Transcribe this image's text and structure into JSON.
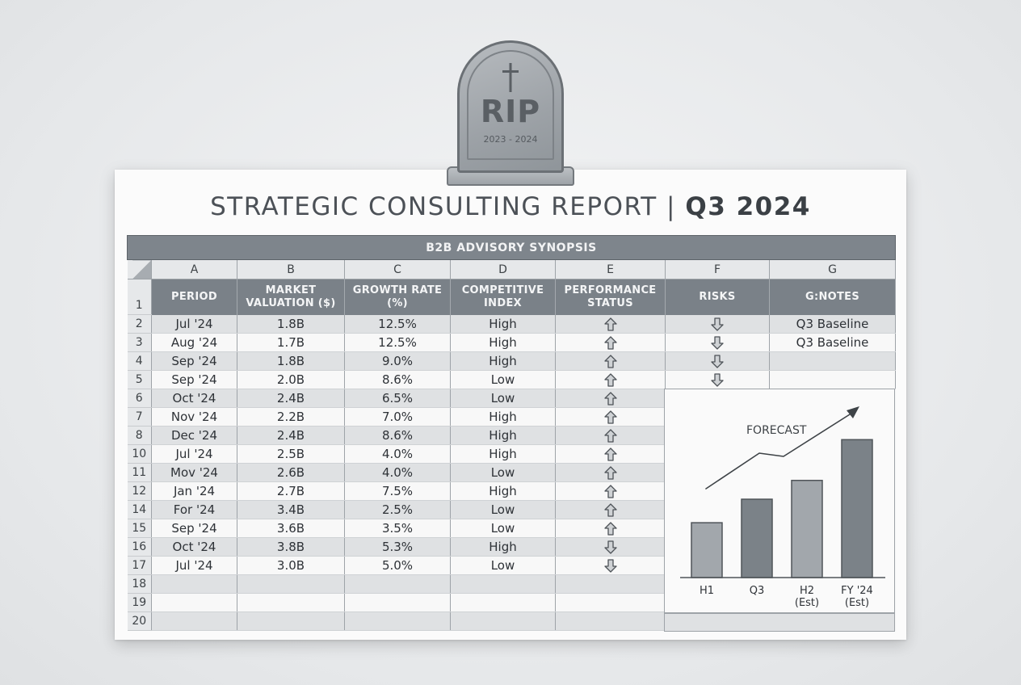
{
  "report": {
    "title_main": "STRATEGIC CONSULTING REPORT | ",
    "title_bold": "Q3 2024"
  },
  "tombstone": {
    "label": "RIP",
    "dates": "2023 - 2024",
    "icon": "cross-icon"
  },
  "table": {
    "banner": "B2B ADVISORY SYNOPSIS",
    "column_letters": [
      "A",
      "B",
      "C",
      "D",
      "E",
      "F",
      "G"
    ],
    "headers": [
      "PERIOD",
      "MARKET VALUATION ($)",
      "GROWTH RATE (%)",
      "COMPETITIVE INDEX",
      "PERFORMANCE STATUS",
      "RISKS",
      "G:NOTES"
    ],
    "header_row_number": "1",
    "rows": [
      {
        "n": "2",
        "period": "Jul '24",
        "valuation": "1.8B",
        "growth": "12.5%",
        "index": "High",
        "status": "up",
        "risk": "down",
        "note": "Q3 Baseline"
      },
      {
        "n": "3",
        "period": "Aug '24",
        "valuation": "1.7B",
        "growth": "12.5%",
        "index": "High",
        "status": "up",
        "risk": "down",
        "note": "Q3 Baseline"
      },
      {
        "n": "4",
        "period": "Sep '24",
        "valuation": "1.8B",
        "growth": "9.0%",
        "index": "High",
        "status": "up",
        "risk": "down",
        "note": ""
      },
      {
        "n": "5",
        "period": "Sep '24",
        "valuation": "2.0B",
        "growth": "8.6%",
        "index": "Low",
        "status": "up",
        "risk": "down",
        "note": ""
      },
      {
        "n": "6",
        "period": "Oct '24",
        "valuation": "2.4B",
        "growth": "6.5%",
        "index": "Low",
        "status": "up"
      },
      {
        "n": "7",
        "period": "Nov '24",
        "valuation": "2.2B",
        "growth": "7.0%",
        "index": "High",
        "status": "up"
      },
      {
        "n": "8",
        "period": "Dec '24",
        "valuation": "2.4B",
        "growth": "8.6%",
        "index": "High",
        "status": "up"
      },
      {
        "n": "10",
        "period": "Jul '24",
        "valuation": "2.5B",
        "growth": "4.0%",
        "index": "High",
        "status": "up"
      },
      {
        "n": "11",
        "period": "Mov '24",
        "valuation": "2.6B",
        "growth": "4.0%",
        "index": "Low",
        "status": "up"
      },
      {
        "n": "12",
        "period": "Jan '24",
        "valuation": "2.7B",
        "growth": "7.5%",
        "index": "High",
        "status": "up"
      },
      {
        "n": "14",
        "period": "For '24",
        "valuation": "3.4B",
        "growth": "2.5%",
        "index": "Low",
        "status": "up"
      },
      {
        "n": "15",
        "period": "Sep '24",
        "valuation": "3.6B",
        "growth": "3.5%",
        "index": "Low",
        "status": "up"
      },
      {
        "n": "16",
        "period": "Oct '24",
        "valuation": "3.8B",
        "growth": "5.3%",
        "index": "High",
        "status": "down"
      },
      {
        "n": "17",
        "period": "Jul '24",
        "valuation": "3.0B",
        "growth": "5.0%",
        "index": "Low",
        "status": "down"
      },
      {
        "n": "18",
        "period": "",
        "valuation": "",
        "growth": "",
        "index": "",
        "status": ""
      },
      {
        "n": "19",
        "period": "",
        "valuation": "",
        "growth": "",
        "index": "",
        "status": ""
      },
      {
        "n": "20",
        "period": "",
        "valuation": "",
        "growth": "",
        "index": "",
        "status": ""
      }
    ]
  },
  "chart_data": {
    "type": "bar",
    "annotation": "FORECAST",
    "categories": [
      "H1",
      "Q3",
      "H2\n(Est)",
      "FY '24\n(Est)"
    ],
    "values": [
      35,
      50,
      62,
      88
    ],
    "ylim": [
      0,
      100
    ],
    "bar_colors": [
      "#a2a7ac",
      "#7b8288",
      "#a2a7ac",
      "#7b8288"
    ],
    "trend": "upward arrow",
    "grid": false
  },
  "colors": {
    "header_fill": "#7a8188",
    "banner_fill": "#7e858c",
    "row_shade": "#dfe1e3",
    "row_plain": "#f8f8f8"
  }
}
